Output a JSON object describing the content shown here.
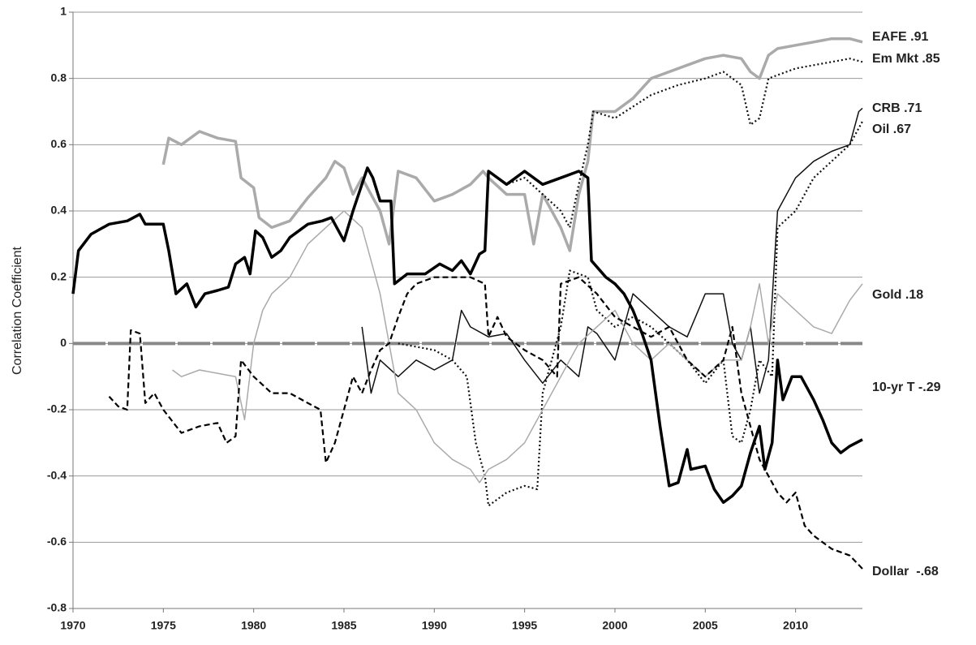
{
  "chart_data": {
    "type": "line",
    "y_label": "Correlation Coefficient",
    "xlim": [
      1970,
      2013.7
    ],
    "xticks": [
      1970,
      1975,
      1980,
      1985,
      1990,
      1995,
      2000,
      2005,
      2010
    ],
    "ylim": [
      -0.8,
      1
    ],
    "yticks": [
      -0.8,
      -0.6,
      -0.4,
      -0.2,
      0,
      0.2,
      0.4,
      0.6,
      0.8,
      1
    ],
    "grid": true,
    "series": [
      {
        "name": "EAFE .91",
        "color": "#aaaaaa",
        "line_style": "thick",
        "x": [
          1975,
          1975.3,
          1976,
          1977,
          1978,
          1979,
          1979.3,
          1980,
          1980.3,
          1981,
          1982,
          1983,
          1984,
          1984.5,
          1985,
          1985.5,
          1986,
          1987,
          1987.5,
          1988,
          1989,
          1990,
          1991,
          1992,
          1992.7,
          1993,
          1994,
          1995,
          1995.5,
          1996,
          1997,
          1997.5,
          1998,
          1998.5,
          1998.8,
          2000,
          2001,
          2002,
          2003,
          2004,
          2005,
          2006,
          2007,
          2007.5,
          2008,
          2008.5,
          2009,
          2010,
          2011,
          2012,
          2013,
          2013.7
        ],
        "values": [
          0.54,
          0.62,
          0.6,
          0.64,
          0.62,
          0.61,
          0.5,
          0.47,
          0.38,
          0.35,
          0.37,
          0.44,
          0.5,
          0.55,
          0.53,
          0.45,
          0.5,
          0.4,
          0.3,
          0.52,
          0.5,
          0.43,
          0.45,
          0.48,
          0.52,
          0.5,
          0.45,
          0.45,
          0.3,
          0.45,
          0.35,
          0.28,
          0.45,
          0.55,
          0.7,
          0.7,
          0.74,
          0.8,
          0.82,
          0.84,
          0.86,
          0.87,
          0.86,
          0.82,
          0.8,
          0.87,
          0.89,
          0.9,
          0.91,
          0.92,
          0.92,
          0.91
        ]
      },
      {
        "name": "Em Mkt .85",
        "color": "#111111",
        "line_style": "dotted",
        "x": [
          1993,
          1994,
          1995,
          1996,
          1997,
          1997.5,
          1998,
          1998.5,
          1998.8,
          2000,
          2002,
          2003.5,
          2005,
          2006,
          2007,
          2007.5,
          2008,
          2008.5,
          2010,
          2011,
          2012,
          2013,
          2013.7
        ],
        "values": [
          0.52,
          0.48,
          0.5,
          0.45,
          0.4,
          0.35,
          0.48,
          0.6,
          0.7,
          0.68,
          0.75,
          0.78,
          0.8,
          0.82,
          0.78,
          0.66,
          0.68,
          0.8,
          0.83,
          0.84,
          0.85,
          0.86,
          0.85
        ]
      },
      {
        "name": "CRB .71",
        "color": "#111111",
        "line_style": "thin",
        "x": [
          1986,
          1986.5,
          1987,
          1988,
          1989,
          1990,
          1991,
          1991.5,
          1992,
          1993,
          1994,
          1995,
          1996,
          1997,
          1998,
          1998.5,
          1999,
          2000,
          2001,
          2002,
          2003,
          2004,
          2005,
          2006,
          2006.5,
          2007,
          2007.5,
          2008,
          2008.5,
          2009,
          2010,
          2011,
          2012,
          2013,
          2013.5,
          2013.7
        ],
        "values": [
          0.05,
          -0.15,
          -0.05,
          -0.1,
          -0.05,
          -0.08,
          -0.05,
          0.1,
          0.05,
          0.02,
          0.03,
          -0.05,
          -0.12,
          -0.05,
          -0.1,
          0.05,
          0.03,
          -0.05,
          0.15,
          0.1,
          0.05,
          0.02,
          0.15,
          0.15,
          0.0,
          -0.05,
          0.05,
          -0.15,
          -0.05,
          0.4,
          0.5,
          0.55,
          0.58,
          0.6,
          0.7,
          0.71
        ]
      },
      {
        "name": "Oil .67",
        "color": "#111111",
        "line_style": "dotted",
        "x": [
          1988,
          1990,
          1991,
          1991.8,
          1992.3,
          1992.8,
          1993,
          1994,
          1995,
          1995.7,
          1996,
          1997,
          1997.5,
          1998.5,
          1999,
          2000,
          2001,
          2002,
          2003,
          2004,
          2005,
          2006,
          2006.5,
          2007,
          2007.5,
          2008,
          2008.7,
          2009,
          2010,
          2011,
          2012,
          2013,
          2013.7
        ],
        "values": [
          0.0,
          -0.02,
          -0.05,
          -0.1,
          -0.3,
          -0.4,
          -0.49,
          -0.45,
          -0.43,
          -0.44,
          -0.15,
          0.05,
          0.22,
          0.2,
          0.1,
          0.05,
          0.08,
          0.05,
          0.0,
          -0.05,
          -0.12,
          -0.05,
          -0.28,
          -0.3,
          -0.2,
          -0.05,
          -0.1,
          0.35,
          0.4,
          0.5,
          0.55,
          0.6,
          0.67
        ]
      },
      {
        "name": "Gold .18",
        "color": "#aaaaaa",
        "line_style": "thin",
        "x": [
          1975.5,
          1976,
          1977,
          1978,
          1979,
          1979.5,
          1980,
          1980.5,
          1981,
          1982,
          1983,
          1984,
          1985,
          1986,
          1986.5,
          1987,
          1987.5,
          1988,
          1989,
          1990,
          1991,
          1992,
          1992.5,
          1993,
          1994,
          1995,
          1996,
          1997,
          1998,
          1999,
          2000,
          2001,
          2002,
          2003,
          2004,
          2005,
          2006,
          2007,
          2007.5,
          2008,
          2008.5,
          2009,
          2010,
          2011,
          2012,
          2013,
          2013.7
        ],
        "values": [
          -0.08,
          -0.1,
          -0.08,
          -0.09,
          -0.1,
          -0.23,
          0.0,
          0.1,
          0.15,
          0.2,
          0.3,
          0.35,
          0.4,
          0.35,
          0.25,
          0.15,
          0.0,
          -0.15,
          -0.2,
          -0.3,
          -0.35,
          -0.38,
          -0.42,
          -0.38,
          -0.35,
          -0.3,
          -0.2,
          -0.1,
          0.0,
          0.05,
          0.1,
          0.0,
          -0.05,
          0.0,
          -0.05,
          -0.1,
          -0.05,
          -0.05,
          0.05,
          0.18,
          0.0,
          0.15,
          0.1,
          0.05,
          0.03,
          0.13,
          0.18
        ]
      },
      {
        "name": "10-yr T -.29",
        "color": "#000000",
        "line_style": "thick",
        "x": [
          1970,
          1970.3,
          1971,
          1972,
          1973,
          1973.7,
          1974,
          1975,
          1975.3,
          1975.7,
          1976.3,
          1976.8,
          1977.3,
          1978,
          1978.6,
          1979,
          1979.5,
          1979.8,
          1980.1,
          1980.5,
          1981,
          1981.5,
          1982,
          1983,
          1983.8,
          1984.3,
          1985,
          1985.5,
          1986.3,
          1986.6,
          1987,
          1987.6,
          1987.8,
          1988.5,
          1989.5,
          1990.3,
          1991,
          1991.5,
          1992,
          1992.5,
          1992.8,
          1993,
          1994,
          1995,
          1996,
          1997,
          1998,
          1998.5,
          1998.7,
          1999.5,
          2000,
          2000.5,
          2001,
          2001.5,
          2002,
          2002.5,
          2003,
          2003.5,
          2004,
          2004.2,
          2005,
          2005.5,
          2006,
          2006.5,
          2007,
          2007.5,
          2008,
          2008.3,
          2008.7,
          2009,
          2009.3,
          2009.8,
          2010.3,
          2011,
          2011.5,
          2012,
          2012.5,
          2013,
          2013.7
        ],
        "values": [
          0.15,
          0.28,
          0.33,
          0.36,
          0.37,
          0.39,
          0.36,
          0.36,
          0.28,
          0.15,
          0.18,
          0.11,
          0.15,
          0.16,
          0.17,
          0.24,
          0.26,
          0.21,
          0.34,
          0.32,
          0.26,
          0.28,
          0.32,
          0.36,
          0.37,
          0.38,
          0.31,
          0.4,
          0.53,
          0.5,
          0.43,
          0.43,
          0.18,
          0.21,
          0.21,
          0.24,
          0.22,
          0.25,
          0.21,
          0.27,
          0.28,
          0.52,
          0.48,
          0.52,
          0.48,
          0.5,
          0.52,
          0.5,
          0.25,
          0.2,
          0.18,
          0.15,
          0.1,
          0.03,
          -0.05,
          -0.25,
          -0.43,
          -0.42,
          -0.32,
          -0.38,
          -0.37,
          -0.44,
          -0.48,
          -0.46,
          -0.43,
          -0.33,
          -0.25,
          -0.38,
          -0.3,
          -0.05,
          -0.17,
          -0.1,
          -0.1,
          -0.17,
          -0.23,
          -0.3,
          -0.33,
          -0.31,
          -0.29
        ]
      },
      {
        "name": "Dollar  -.68",
        "color": "#000000",
        "line_style": "dashed",
        "x": [
          1972,
          1972.5,
          1973,
          1973.2,
          1973.7,
          1974,
          1974.5,
          1975,
          1976,
          1977,
          1978,
          1978.5,
          1979,
          1979.3,
          1980,
          1981,
          1982,
          1983,
          1983.7,
          1984,
          1984.5,
          1985,
          1985.5,
          1986,
          1986.5,
          1987,
          1987.5,
          1988,
          1988.5,
          1989,
          1990,
          1991,
          1992,
          1992.8,
          1993,
          1993.5,
          1994,
          1995,
          1996,
          1996.8,
          1997,
          1998,
          1999,
          2000,
          2001,
          2002,
          2003,
          2004,
          2005,
          2006,
          2006.5,
          2007,
          2008,
          2008.5,
          2009,
          2009.5,
          2010,
          2010.5,
          2011,
          2012,
          2013,
          2013.7
        ],
        "values": [
          -0.16,
          -0.19,
          -0.2,
          0.04,
          0.03,
          -0.18,
          -0.15,
          -0.2,
          -0.27,
          -0.25,
          -0.24,
          -0.3,
          -0.28,
          -0.05,
          -0.1,
          -0.15,
          -0.15,
          -0.18,
          -0.2,
          -0.36,
          -0.3,
          -0.2,
          -0.1,
          -0.15,
          -0.08,
          -0.02,
          0.0,
          0.08,
          0.15,
          0.18,
          0.2,
          0.2,
          0.2,
          0.18,
          0.02,
          0.08,
          0.02,
          -0.02,
          -0.05,
          -0.1,
          0.18,
          0.2,
          0.15,
          0.08,
          0.05,
          0.02,
          0.05,
          -0.05,
          -0.1,
          -0.05,
          0.05,
          -0.15,
          -0.35,
          -0.4,
          -0.45,
          -0.48,
          -0.45,
          -0.55,
          -0.58,
          -0.62,
          -0.64,
          -0.68
        ]
      }
    ]
  }
}
